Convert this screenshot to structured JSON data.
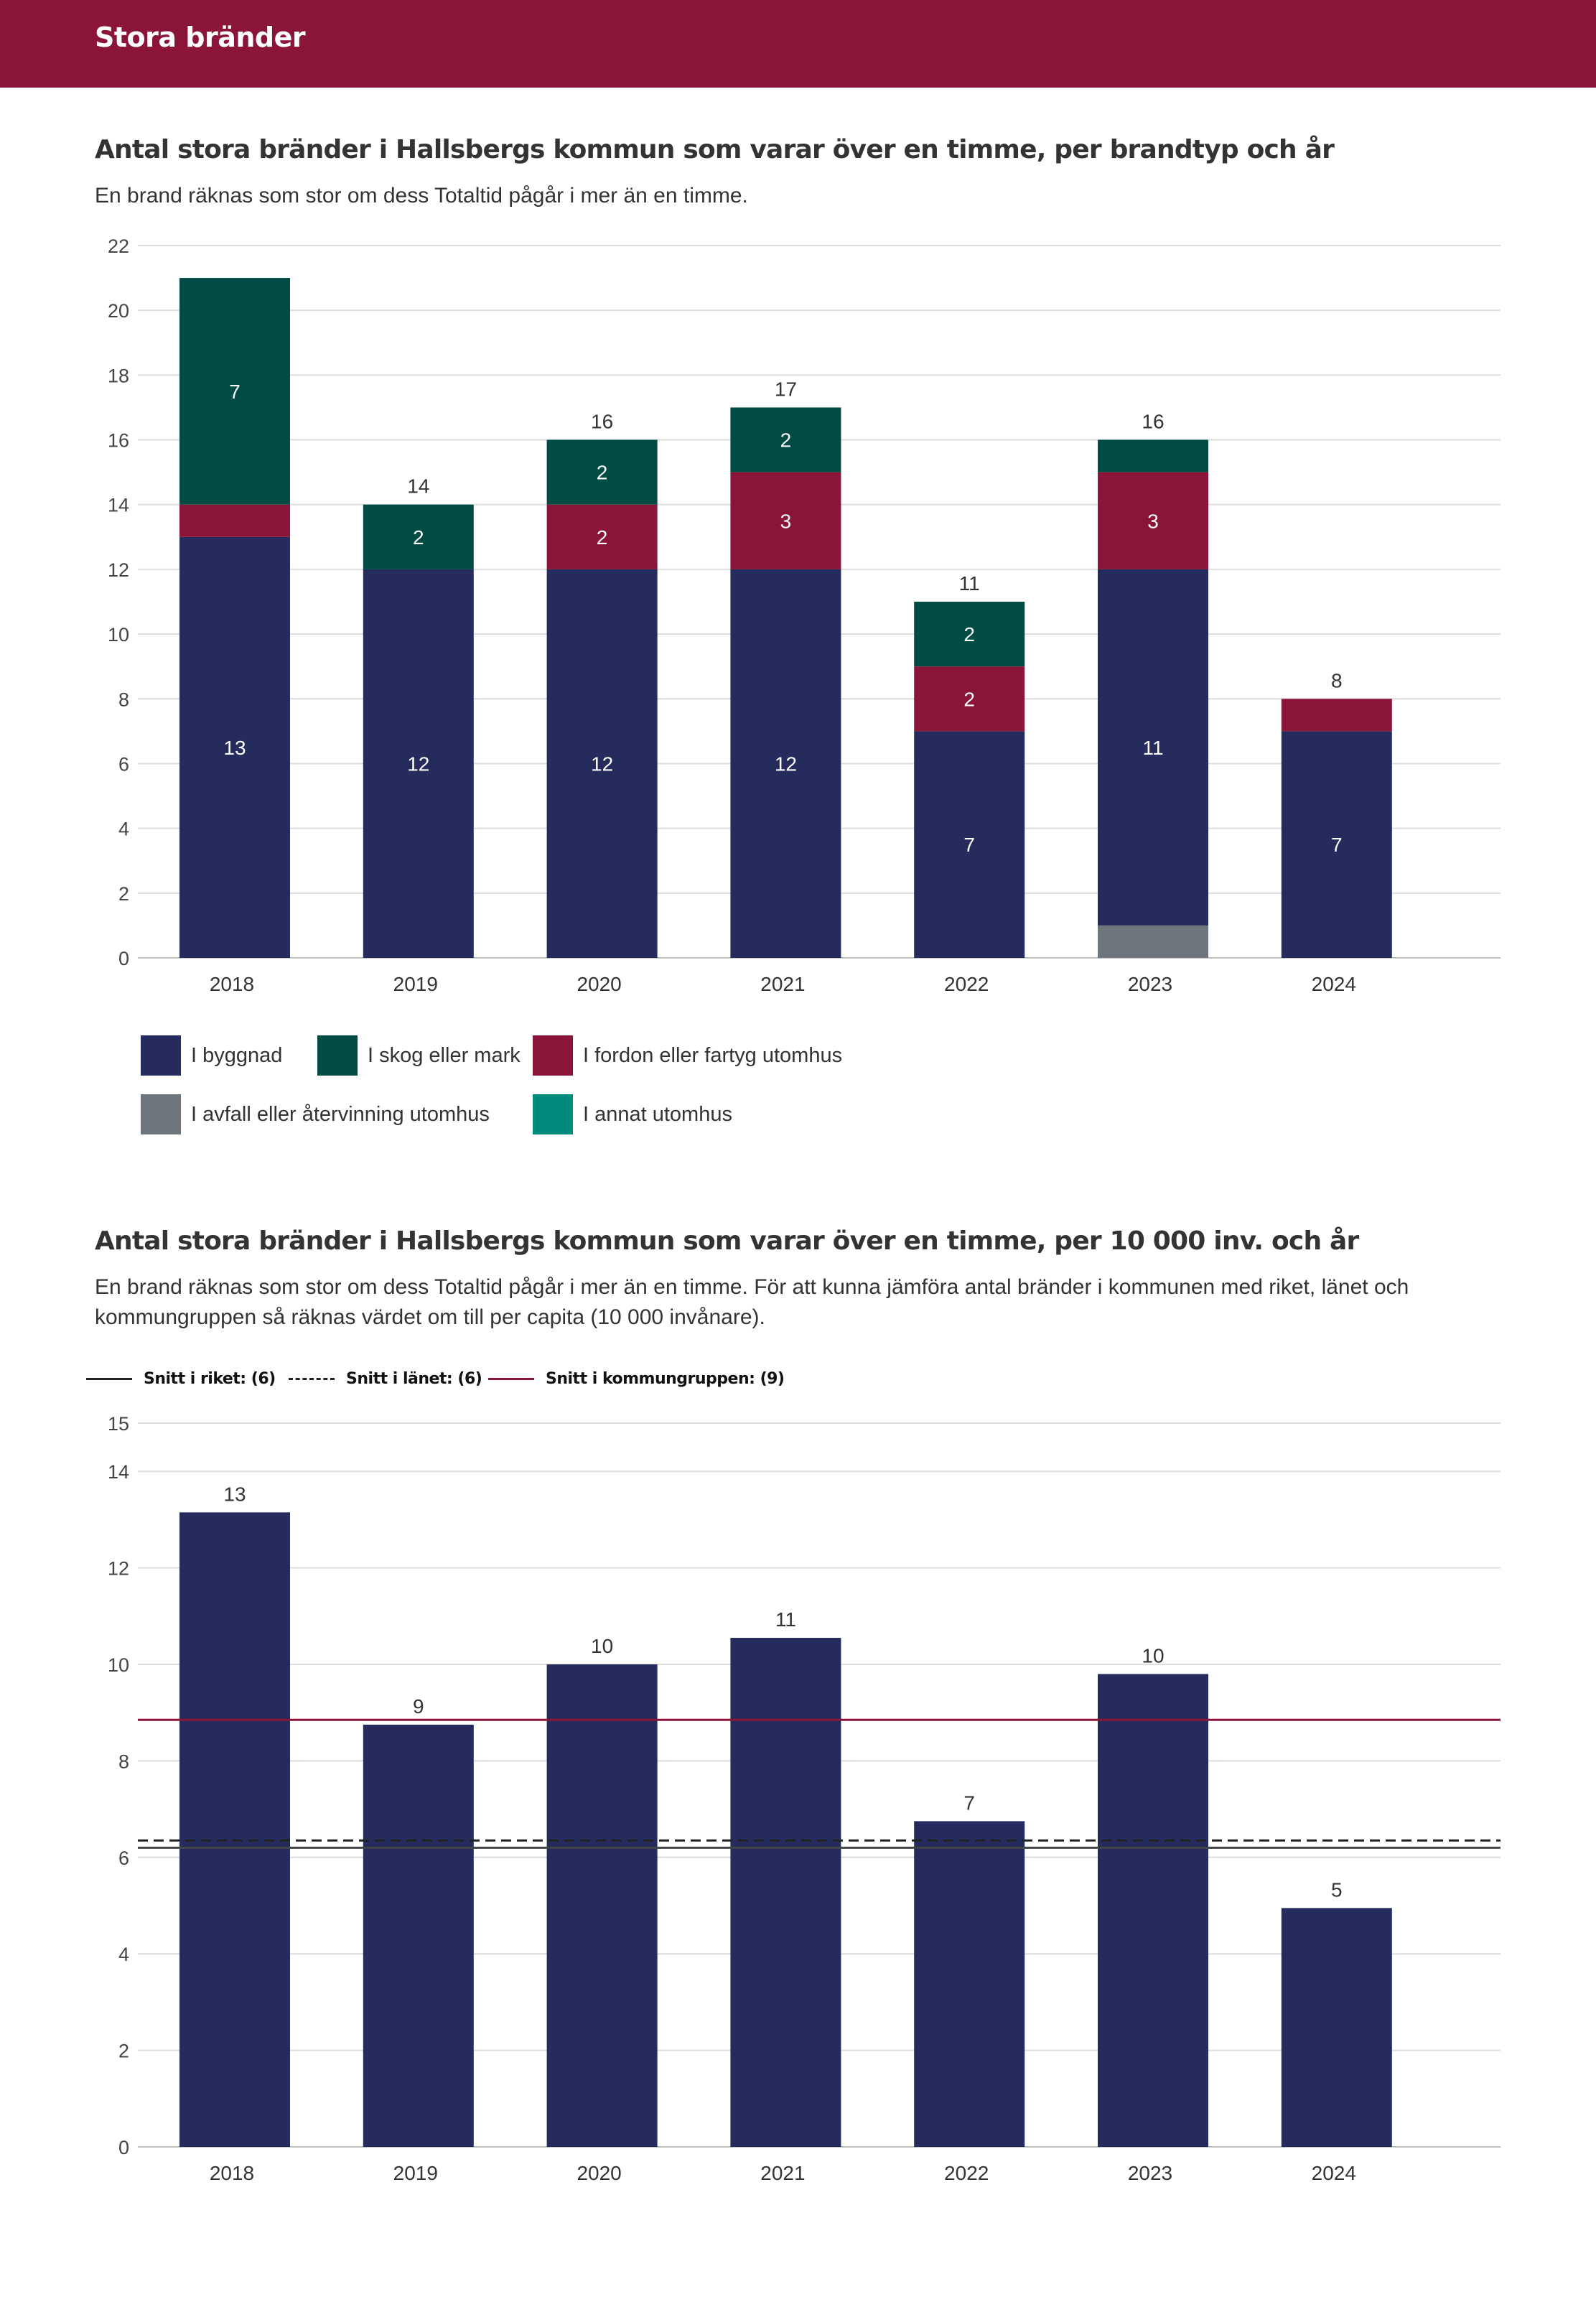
{
  "banner": {
    "title": "Stora bränder"
  },
  "chart1": {
    "title": "Antal stora bränder i Hallsbergs kommun som varar över en timme, per brandtyp och år",
    "subtitle": "En brand räknas som stor om dess Totaltid pågår i mer än en timme."
  },
  "chart2": {
    "title": "Antal stora bränder i Hallsbergs kommun som varar över en timme, per 10 000 inv. och år",
    "subtitle_line1": "En brand räknas som stor om dess Totaltid pågår i mer än en timme. För att kunna jämföra antal bränder i kommunen med riket, länet och",
    "subtitle_line2": "kommungruppen så räknas värdet om till per capita (10 000 invånare)."
  },
  "legend": [
    {
      "label": "I byggnad",
      "color": "#252b5c"
    },
    {
      "label": "I skog eller mark",
      "color": "#004c45"
    },
    {
      "label": "I fordon eller fartyg utomhus",
      "color": "#8b1538"
    },
    {
      "label": "I avfall eller återvinning utomhus",
      "color": "#6f757d"
    },
    {
      "label": "I annat utomhus",
      "color": "#008a7e"
    }
  ],
  "averages": [
    {
      "label": "Snitt i riket: (6)",
      "color": "#222222",
      "style": "solid"
    },
    {
      "label": "Snitt i länet: (6)",
      "color": "#222222",
      "style": "dashed"
    },
    {
      "label": "Snitt i kommungruppen: (9)",
      "color": "#8b1538",
      "style": "solid"
    }
  ],
  "chart_data": [
    {
      "type": "bar",
      "stacked": true,
      "title": "Antal stora bränder i Hallsbergs kommun som varar över en timme, per brandtyp och år",
      "categories": [
        "2018",
        "2019",
        "2020",
        "2021",
        "2022",
        "2023",
        "2024"
      ],
      "yticks": [
        "0",
        "2",
        "4",
        "6",
        "8",
        "10",
        "12",
        "14",
        "16",
        "18",
        "20",
        "22"
      ],
      "ylim": [
        0,
        22
      ],
      "grid": true,
      "legend_position": "bottom",
      "series": [
        {
          "name": "I avfall eller återvinning utomhus",
          "color": "#6f757d",
          "values": [
            0,
            0,
            0,
            0,
            0,
            1,
            0
          ],
          "labels": [
            "",
            "",
            "",
            "",
            "",
            "",
            ""
          ]
        },
        {
          "name": "I byggnad",
          "color": "#252b5c",
          "values": [
            13,
            12,
            12,
            12,
            7,
            11,
            7
          ],
          "labels": [
            "13",
            "12",
            "12",
            "12",
            "7",
            "11",
            "7"
          ]
        },
        {
          "name": "I fordon eller fartyg utomhus",
          "color": "#8b1538",
          "values": [
            1,
            0,
            2,
            3,
            2,
            3,
            1
          ],
          "labels": [
            "",
            "",
            "2",
            "3",
            "2",
            "3",
            ""
          ]
        },
        {
          "name": "I skog eller mark",
          "color": "#004c45",
          "values": [
            7,
            2,
            2,
            2,
            2,
            1,
            0
          ],
          "labels": [
            "7",
            "2",
            "2",
            "2",
            "2",
            "",
            ""
          ]
        },
        {
          "name": "I annat utomhus",
          "color": "#008a7e",
          "values": [
            0,
            0,
            0,
            0,
            0,
            0,
            0
          ],
          "labels": [
            "",
            "",
            "",
            "",
            "",
            "",
            ""
          ]
        }
      ],
      "totals": [
        "",
        "14",
        "16",
        "17",
        "11",
        "16",
        "8"
      ]
    },
    {
      "type": "bar",
      "title": "Antal stora bränder i Hallsbergs kommun som varar över en timme, per 10 000 inv. och år",
      "categories": [
        "2018",
        "2019",
        "2020",
        "2021",
        "2022",
        "2023",
        "2024"
      ],
      "values": [
        13.15,
        8.75,
        10.0,
        10.55,
        6.75,
        9.8,
        4.95
      ],
      "value_labels": [
        "13",
        "9",
        "10",
        "11",
        "7",
        "10",
        "5"
      ],
      "yticks": [
        "0",
        "2",
        "4",
        "6",
        "8",
        "10",
        "12",
        "14",
        "15"
      ],
      "ylim": [
        0,
        15
      ],
      "grid": true,
      "bar_color": "#252b5c",
      "reference_lines": [
        {
          "name": "Snitt i riket",
          "value": 6.2,
          "color": "#444444",
          "style": "solid"
        },
        {
          "name": "Snitt i länet",
          "value": 6.35,
          "color": "#222222",
          "style": "dashed"
        },
        {
          "name": "Snitt i kommungruppen",
          "value": 8.85,
          "color": "#8b1538",
          "style": "solid"
        }
      ]
    }
  ]
}
